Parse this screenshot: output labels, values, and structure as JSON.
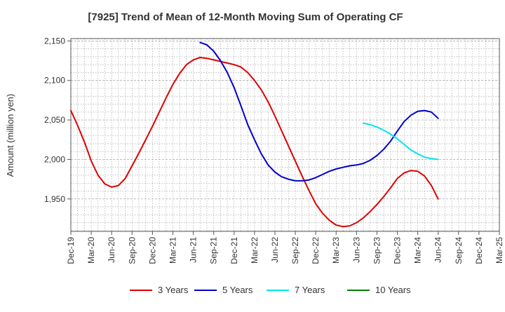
{
  "chart_data": {
    "type": "line",
    "title": "[7925]  Trend of Mean of 12-Month Moving Sum of Operating CF",
    "xlabel": "",
    "ylabel": "Amount (million yen)",
    "ylim": [
      1909,
      2153
    ],
    "yticks": [
      1950,
      2000,
      2050,
      2100,
      2150
    ],
    "ytick_labels": [
      "1,950",
      "2,000",
      "2,050",
      "2,100",
      "2,150"
    ],
    "x_tick_labels": [
      "Dec-19",
      "Mar-20",
      "Jun-20",
      "Sep-20",
      "Dec-20",
      "Mar-21",
      "Jun-21",
      "Sep-21",
      "Dec-21",
      "Mar-22",
      "Jun-22",
      "Sep-22",
      "Dec-22",
      "Mar-23",
      "Jun-23",
      "Sep-23",
      "Dec-23",
      "Mar-24",
      "Jun-24",
      "Sep-24",
      "Dec-24",
      "Mar-25"
    ],
    "grid": true,
    "legend_position": "bottom",
    "series": [
      {
        "name": "3 Years",
        "color": "#dd0000",
        "start_month_index": 0,
        "values": [
          2062,
          2043,
          2022,
          1998,
          1980,
          1969,
          1965,
          1967,
          1976,
          1992,
          2008,
          2025,
          2042,
          2060,
          2078,
          2095,
          2109,
          2120,
          2126,
          2129,
          2128,
          2126,
          2124,
          2122,
          2120,
          2117,
          2110,
          2100,
          2088,
          2073,
          2055,
          2036,
          2017,
          1998,
          1979,
          1961,
          1944,
          1932,
          1923,
          1917,
          1915,
          1916,
          1920,
          1926,
          1934,
          1943,
          1953,
          1964,
          1976,
          1983,
          1986,
          1985,
          1979,
          1967,
          1950
        ]
      },
      {
        "name": "5 Years",
        "color": "#0000cc",
        "start_month_index": 19,
        "values": [
          2148,
          2145,
          2137,
          2125,
          2110,
          2091,
          2068,
          2044,
          2025,
          2007,
          1993,
          1984,
          1978,
          1975,
          1973,
          1973,
          1974,
          1977,
          1981,
          1985,
          1988,
          1990,
          1992,
          1993,
          1995,
          1999,
          2005,
          2013,
          2023,
          2036,
          2048,
          2056,
          2061,
          2062,
          2060,
          2052
        ]
      },
      {
        "name": "7 Years",
        "color": "#00e5ee",
        "start_month_index": 43,
        "values": [
          2046,
          2044,
          2041,
          2037,
          2032,
          2026,
          2019,
          2012,
          2007,
          2003,
          2001,
          2000
        ]
      },
      {
        "name": "10 Years",
        "color": "#008000",
        "start_month_index": 0,
        "values": []
      }
    ]
  }
}
